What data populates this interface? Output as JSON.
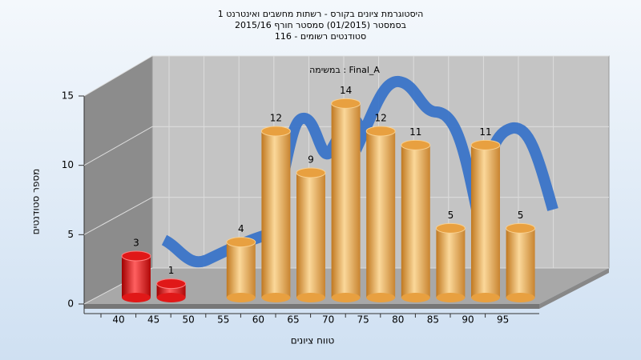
{
  "chart_data": {
    "type": "bar",
    "title": [
      "היסטוגרמת ציונים בקורס - רשתות מחשבים ואינטרנט 1",
      "בסמסטר  (01/2015)  סמסטר חורף 2015/16",
      "סטודנטים רשומים - 116"
    ],
    "annotation": "במשימה : Final_A",
    "x_label": "טווח ציונים",
    "y_label": "מספר סטודנטים",
    "categories": [
      "40",
      "45",
      "50",
      "55",
      "60",
      "65",
      "70",
      "75",
      "80",
      "85",
      "90",
      "95"
    ],
    "values": [
      3,
      1,
      0,
      4,
      12,
      9,
      14,
      12,
      11,
      5,
      11,
      5
    ],
    "colors": [
      "#e01818",
      "#e01818",
      "#e8a040",
      "#e8a040",
      "#e8a040",
      "#e8a040",
      "#e8a040",
      "#e8a040",
      "#e8a040",
      "#e8a040",
      "#e8a040",
      "#e8a040"
    ],
    "ylim": [
      0,
      15
    ],
    "yticks": [
      0,
      5,
      10,
      15
    ],
    "grid": true
  }
}
